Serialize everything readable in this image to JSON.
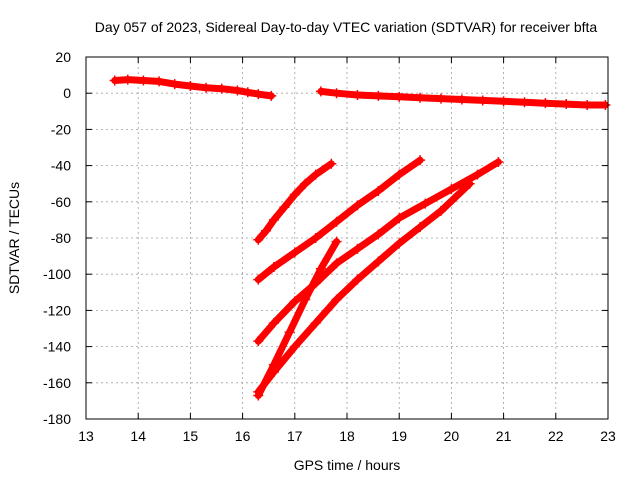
{
  "chart_data": {
    "type": "scatter",
    "title": "Day 057 of 2023, Sidereal Day-to-day VTEC variation (SDTVAR) for receiver bfta",
    "xlabel": "GPS time / hours",
    "ylabel": "SDTVAR / TECUs",
    "xlim": [
      13,
      23
    ],
    "ylim": [
      -180,
      20
    ],
    "xticks": [
      "13",
      "14",
      "15",
      "16",
      "17",
      "18",
      "19",
      "20",
      "21",
      "22",
      "23"
    ],
    "yticks": [
      "20",
      "0",
      "-20",
      "-40",
      "-60",
      "-80",
      "-100",
      "-120",
      "-140",
      "-160",
      "-180"
    ],
    "grid": true,
    "marker": "+",
    "color": "#ff0000",
    "series": [
      {
        "x": [
          13.55,
          13.8,
          14.1,
          14.4,
          14.7,
          15.0,
          15.3,
          15.6,
          15.9,
          16.1,
          16.3,
          16.55
        ],
        "y": [
          7,
          7.5,
          7,
          6.5,
          5,
          4,
          3,
          2.5,
          1.5,
          0.5,
          -0.5,
          -1.5
        ]
      },
      {
        "x": [
          17.5,
          17.8,
          18.2,
          18.6,
          19.0,
          19.4,
          19.8,
          20.2,
          20.6,
          21.0,
          21.4,
          21.8,
          22.2,
          22.6,
          22.95
        ],
        "y": [
          1,
          0,
          -1,
          -1.5,
          -2,
          -2.5,
          -3,
          -3.5,
          -4,
          -4.5,
          -5,
          -5.5,
          -6,
          -6.5,
          -6.5
        ]
      },
      {
        "x": [
          16.3,
          16.45,
          16.6,
          16.8,
          17.0,
          17.2,
          17.4,
          17.7
        ],
        "y": [
          -81,
          -76,
          -70,
          -63,
          -56,
          -50,
          -45,
          -39
        ]
      },
      {
        "x": [
          16.3,
          16.6,
          17.0,
          17.4,
          17.8,
          18.2,
          18.6,
          19.0,
          19.4
        ],
        "y": [
          -103,
          -96,
          -88,
          -80,
          -71,
          -62,
          -54,
          -45,
          -37
        ]
      },
      {
        "x": [
          16.3,
          16.6,
          17.0,
          17.4,
          17.8,
          18.2,
          18.6,
          19.0,
          19.5,
          20.0,
          20.5,
          20.9
        ],
        "y": [
          -137,
          -127,
          -115,
          -105,
          -94,
          -86,
          -78,
          -69,
          -61,
          -53,
          -45,
          -38
        ]
      },
      {
        "x": [
          16.3,
          16.6,
          16.9,
          17.2,
          17.5,
          17.8
        ],
        "y": [
          -167,
          -150,
          -132,
          -114,
          -97,
          -82
        ]
      },
      {
        "x": [
          16.3,
          16.6,
          17.0,
          17.4,
          17.8,
          18.2,
          18.6,
          19.0,
          19.4,
          19.8,
          20.35
        ],
        "y": [
          -165,
          -154,
          -140,
          -127,
          -114,
          -103,
          -93,
          -83,
          -74,
          -65,
          -50
        ]
      }
    ]
  }
}
